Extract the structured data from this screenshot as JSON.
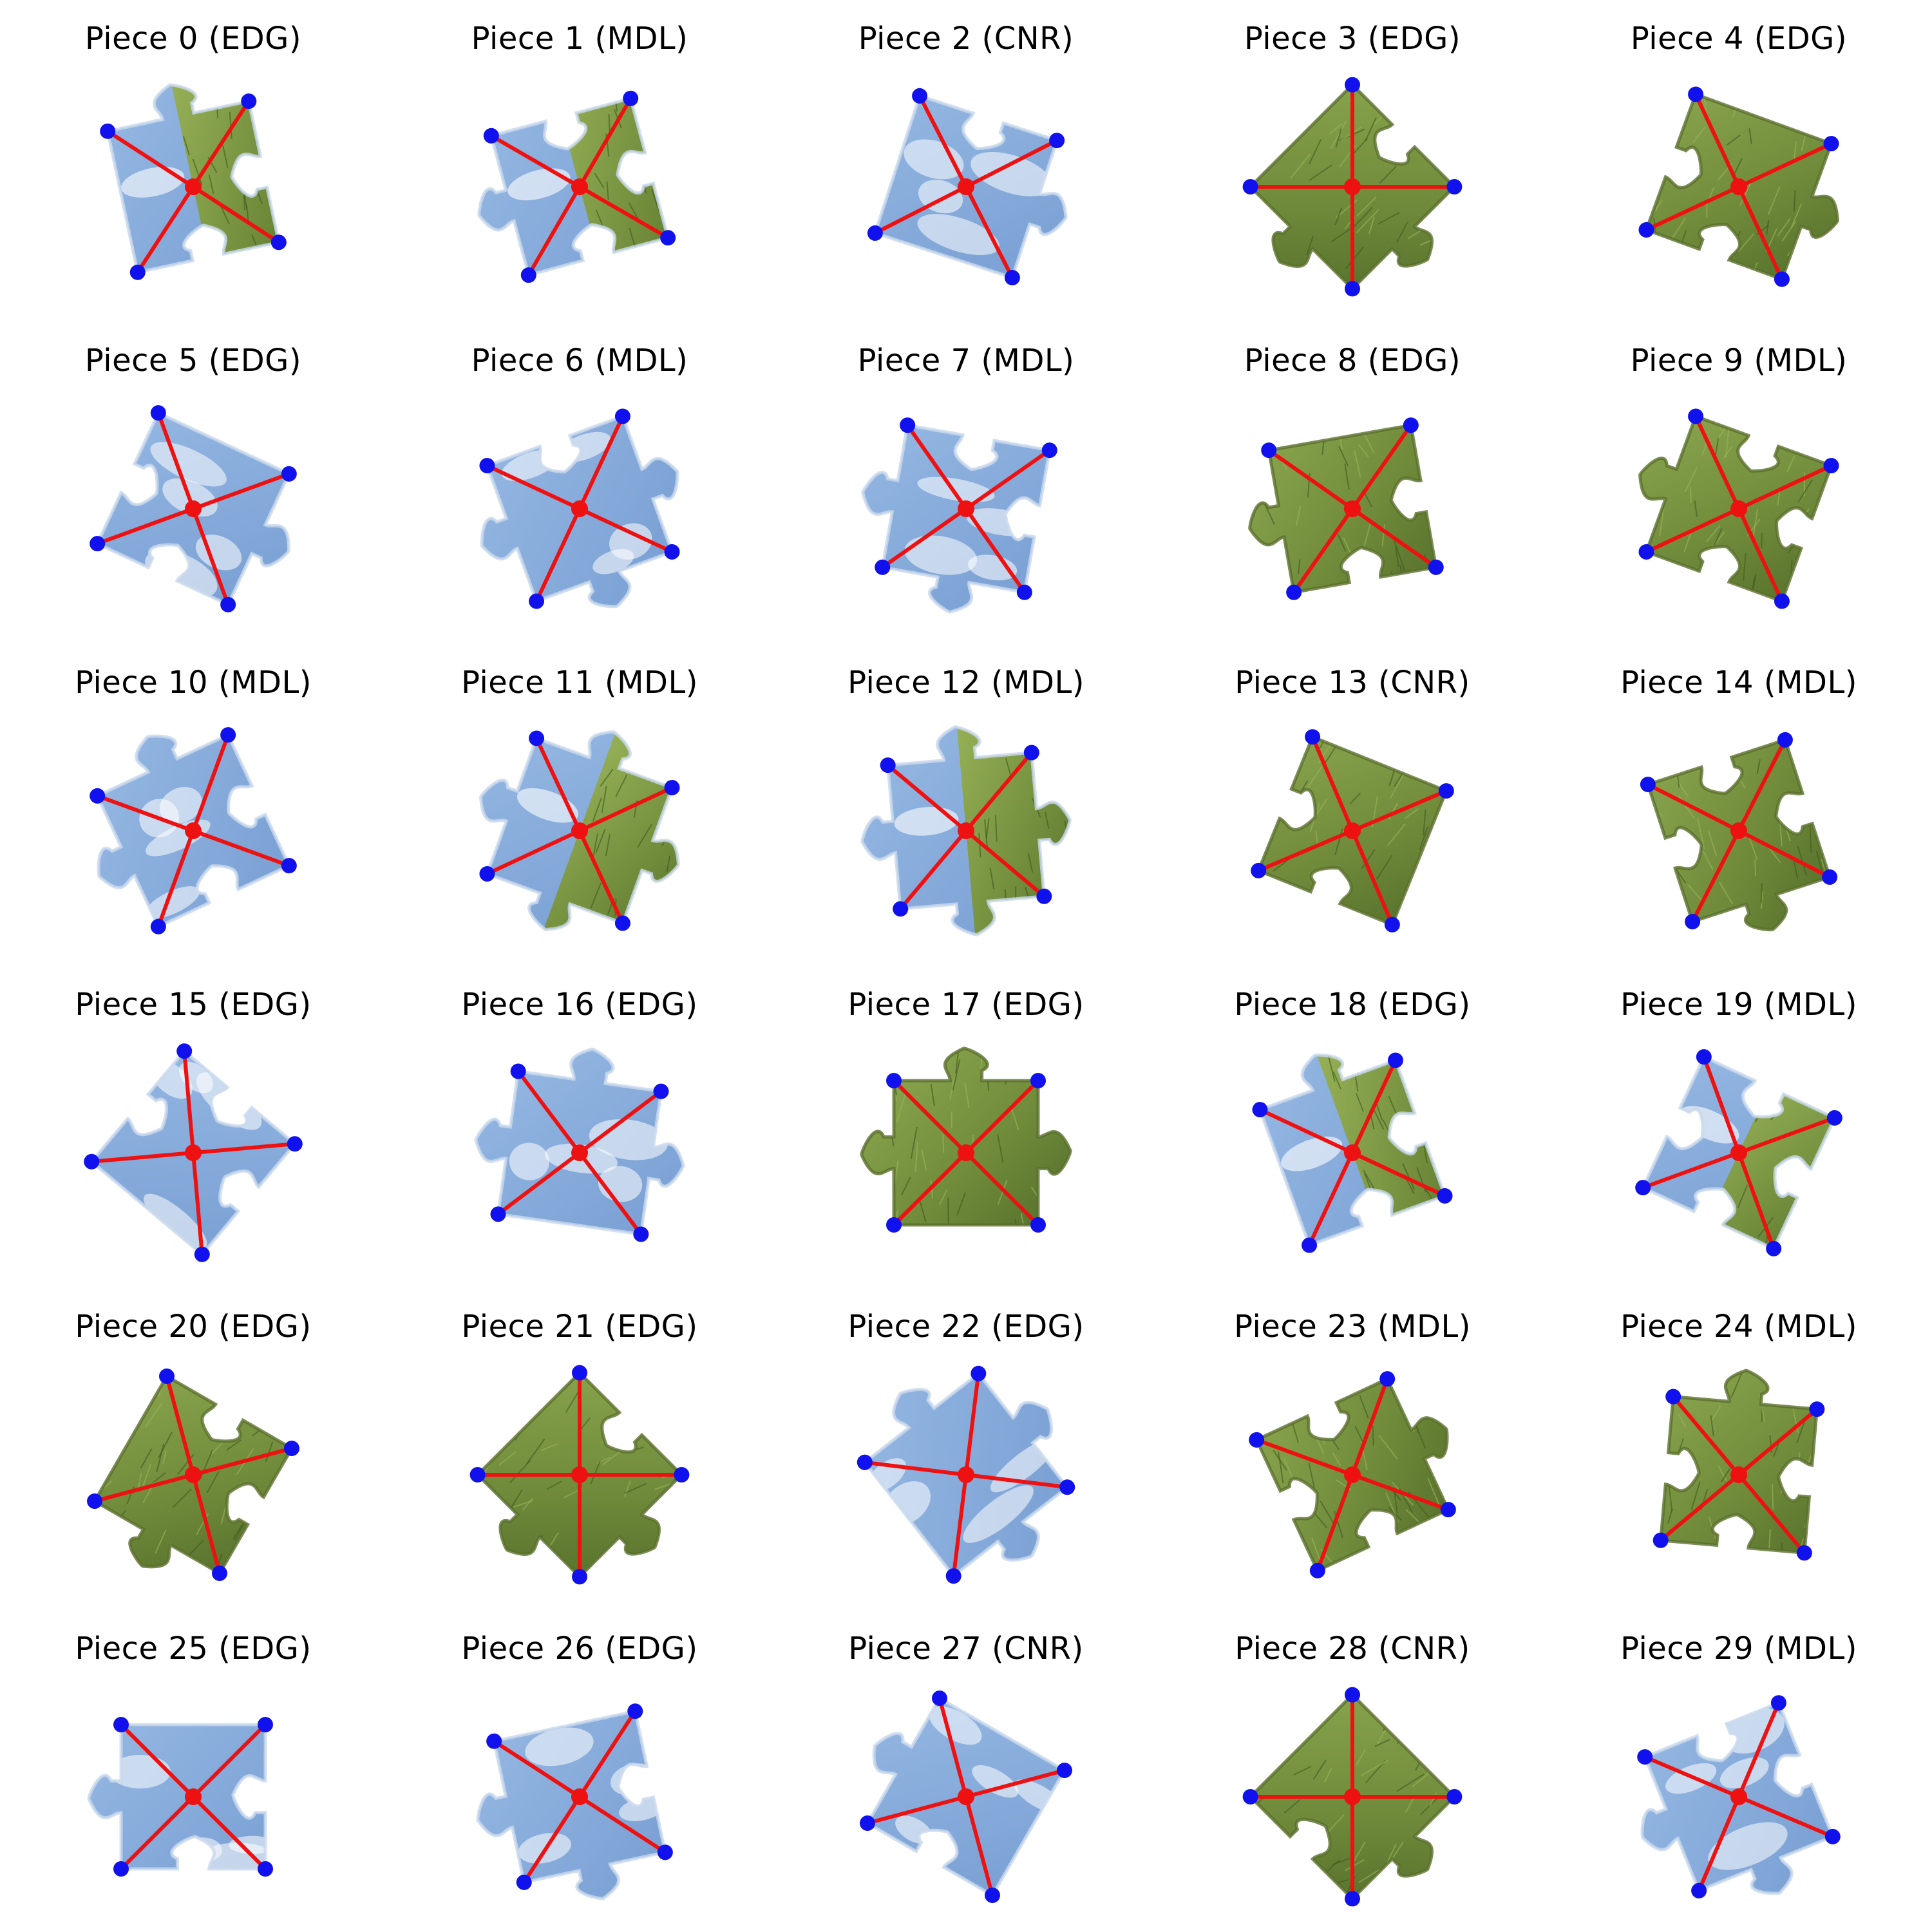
{
  "colors": {
    "sky": "#9ebfe6",
    "sky_dark": "#6f97cf",
    "cloud": "#ffffff",
    "grass": "#6f8a3a",
    "grass_light": "#9bb55a",
    "grass_dark": "#3f5a1e",
    "spoke": "#ee1111",
    "corner": "#1111ee",
    "center": "#ee1111"
  },
  "pieces": [
    {
      "label": "Piece 0 (EDG)",
      "texture": "mixed",
      "rotation": -12
    },
    {
      "label": "Piece 1 (MDL)",
      "texture": "mixed",
      "rotation": -15
    },
    {
      "label": "Piece 2 (CNR)",
      "texture": "sky",
      "rotation": 18
    },
    {
      "label": "Piece 3 (EDG)",
      "texture": "grass",
      "rotation": 45
    },
    {
      "label": "Piece 4 (EDG)",
      "texture": "grass",
      "rotation": 20
    },
    {
      "label": "Piece 5 (EDG)",
      "texture": "sky",
      "rotation": 25
    },
    {
      "label": "Piece 6 (MDL)",
      "texture": "sky",
      "rotation": -20
    },
    {
      "label": "Piece 7 (MDL)",
      "texture": "sky",
      "rotation": 10
    },
    {
      "label": "Piece 8 (EDG)",
      "texture": "grass",
      "rotation": -10
    },
    {
      "label": "Piece 9 (MDL)",
      "texture": "grass",
      "rotation": 20
    },
    {
      "label": "Piece 10 (MDL)",
      "texture": "sky",
      "rotation": -25
    },
    {
      "label": "Piece 11 (MDL)",
      "texture": "mixed",
      "rotation": 20
    },
    {
      "label": "Piece 12 (MDL)",
      "texture": "mixed",
      "rotation": -5
    },
    {
      "label": "Piece 13 (CNR)",
      "texture": "grass",
      "rotation": 22
    },
    {
      "label": "Piece 14 (MDL)",
      "texture": "grass",
      "rotation": -18
    },
    {
      "label": "Piece 15 (EDG)",
      "texture": "sky",
      "rotation": 40
    },
    {
      "label": "Piece 16 (EDG)",
      "texture": "sky",
      "rotation": 8
    },
    {
      "label": "Piece 17 (EDG)",
      "texture": "grass",
      "rotation": 0
    },
    {
      "label": "Piece 18 (EDG)",
      "texture": "mixed",
      "rotation": -20
    },
    {
      "label": "Piece 19 (MDL)",
      "texture": "mixed",
      "rotation": 25
    },
    {
      "label": "Piece 20 (EDG)",
      "texture": "grass",
      "rotation": 30
    },
    {
      "label": "Piece 21 (EDG)",
      "texture": "grass",
      "rotation": 45
    },
    {
      "label": "Piece 22 (EDG)",
      "texture": "sky",
      "rotation": -38
    },
    {
      "label": "Piece 23 (MDL)",
      "texture": "grass",
      "rotation": -25
    },
    {
      "label": "Piece 24 (MDL)",
      "texture": "grass",
      "rotation": 5
    },
    {
      "label": "Piece 25 (EDG)",
      "texture": "sky",
      "rotation": 0
    },
    {
      "label": "Piece 26 (EDG)",
      "texture": "sky",
      "rotation": -12
    },
    {
      "label": "Piece 27 (CNR)",
      "texture": "sky",
      "rotation": 30
    },
    {
      "label": "Piece 28 (CNR)",
      "texture": "grass",
      "rotation": 45
    },
    {
      "label": "Piece 29 (MDL)",
      "texture": "sky",
      "rotation": -22
    }
  ]
}
